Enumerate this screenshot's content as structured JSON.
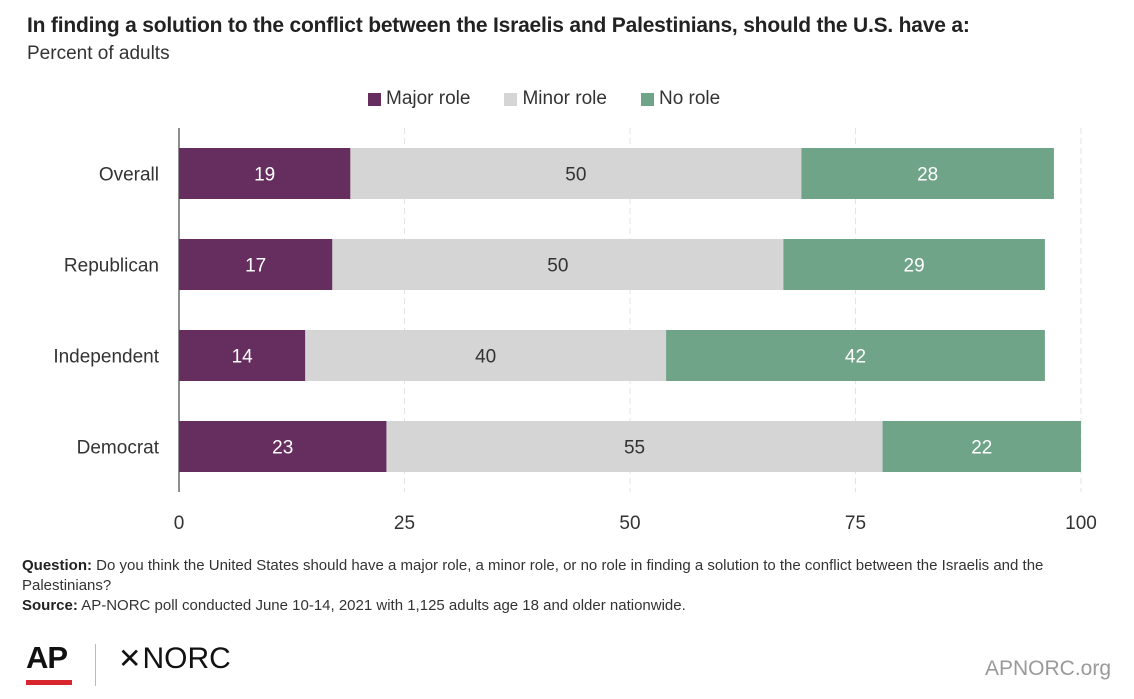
{
  "title": "In finding a solution to the conflict between the Israelis and Palestinians, should the U.S. have a:",
  "subtitle": "Percent of adults",
  "chart_data": {
    "type": "bar",
    "orientation": "horizontal",
    "stacked": true,
    "categories": [
      "Overall",
      "Republican",
      "Independent",
      "Democrat"
    ],
    "series": [
      {
        "name": "Major role",
        "values": [
          19,
          17,
          14,
          23
        ],
        "color": "#662d5f"
      },
      {
        "name": "Minor role",
        "values": [
          50,
          50,
          40,
          55
        ],
        "color": "#d5d5d5"
      },
      {
        "name": "No role",
        "values": [
          28,
          29,
          42,
          22
        ],
        "color": "#70a488"
      }
    ],
    "xlim": [
      0,
      100
    ],
    "xticks": [
      0,
      25,
      50,
      75,
      100
    ],
    "grid": true,
    "legend_position": "top",
    "label_colors": {
      "Major role": "#ffffff",
      "Minor role": "#333333",
      "No role": "#ffffff"
    }
  },
  "notes": {
    "question_label": "Question:",
    "question_text": "Do you think the United States should have a major role, a minor role, or no role in finding a solution to the conflict between the Israelis and the Palestinians?",
    "source_label": "Source:",
    "source_text": "AP-NORC poll conducted June 10-14, 2021 with 1,125 adults age 18 and older nationwide."
  },
  "footer": {
    "ap_logo": "AP",
    "norc_star": "✕",
    "norc_logo": "NORC",
    "site": "APNORC.org"
  }
}
